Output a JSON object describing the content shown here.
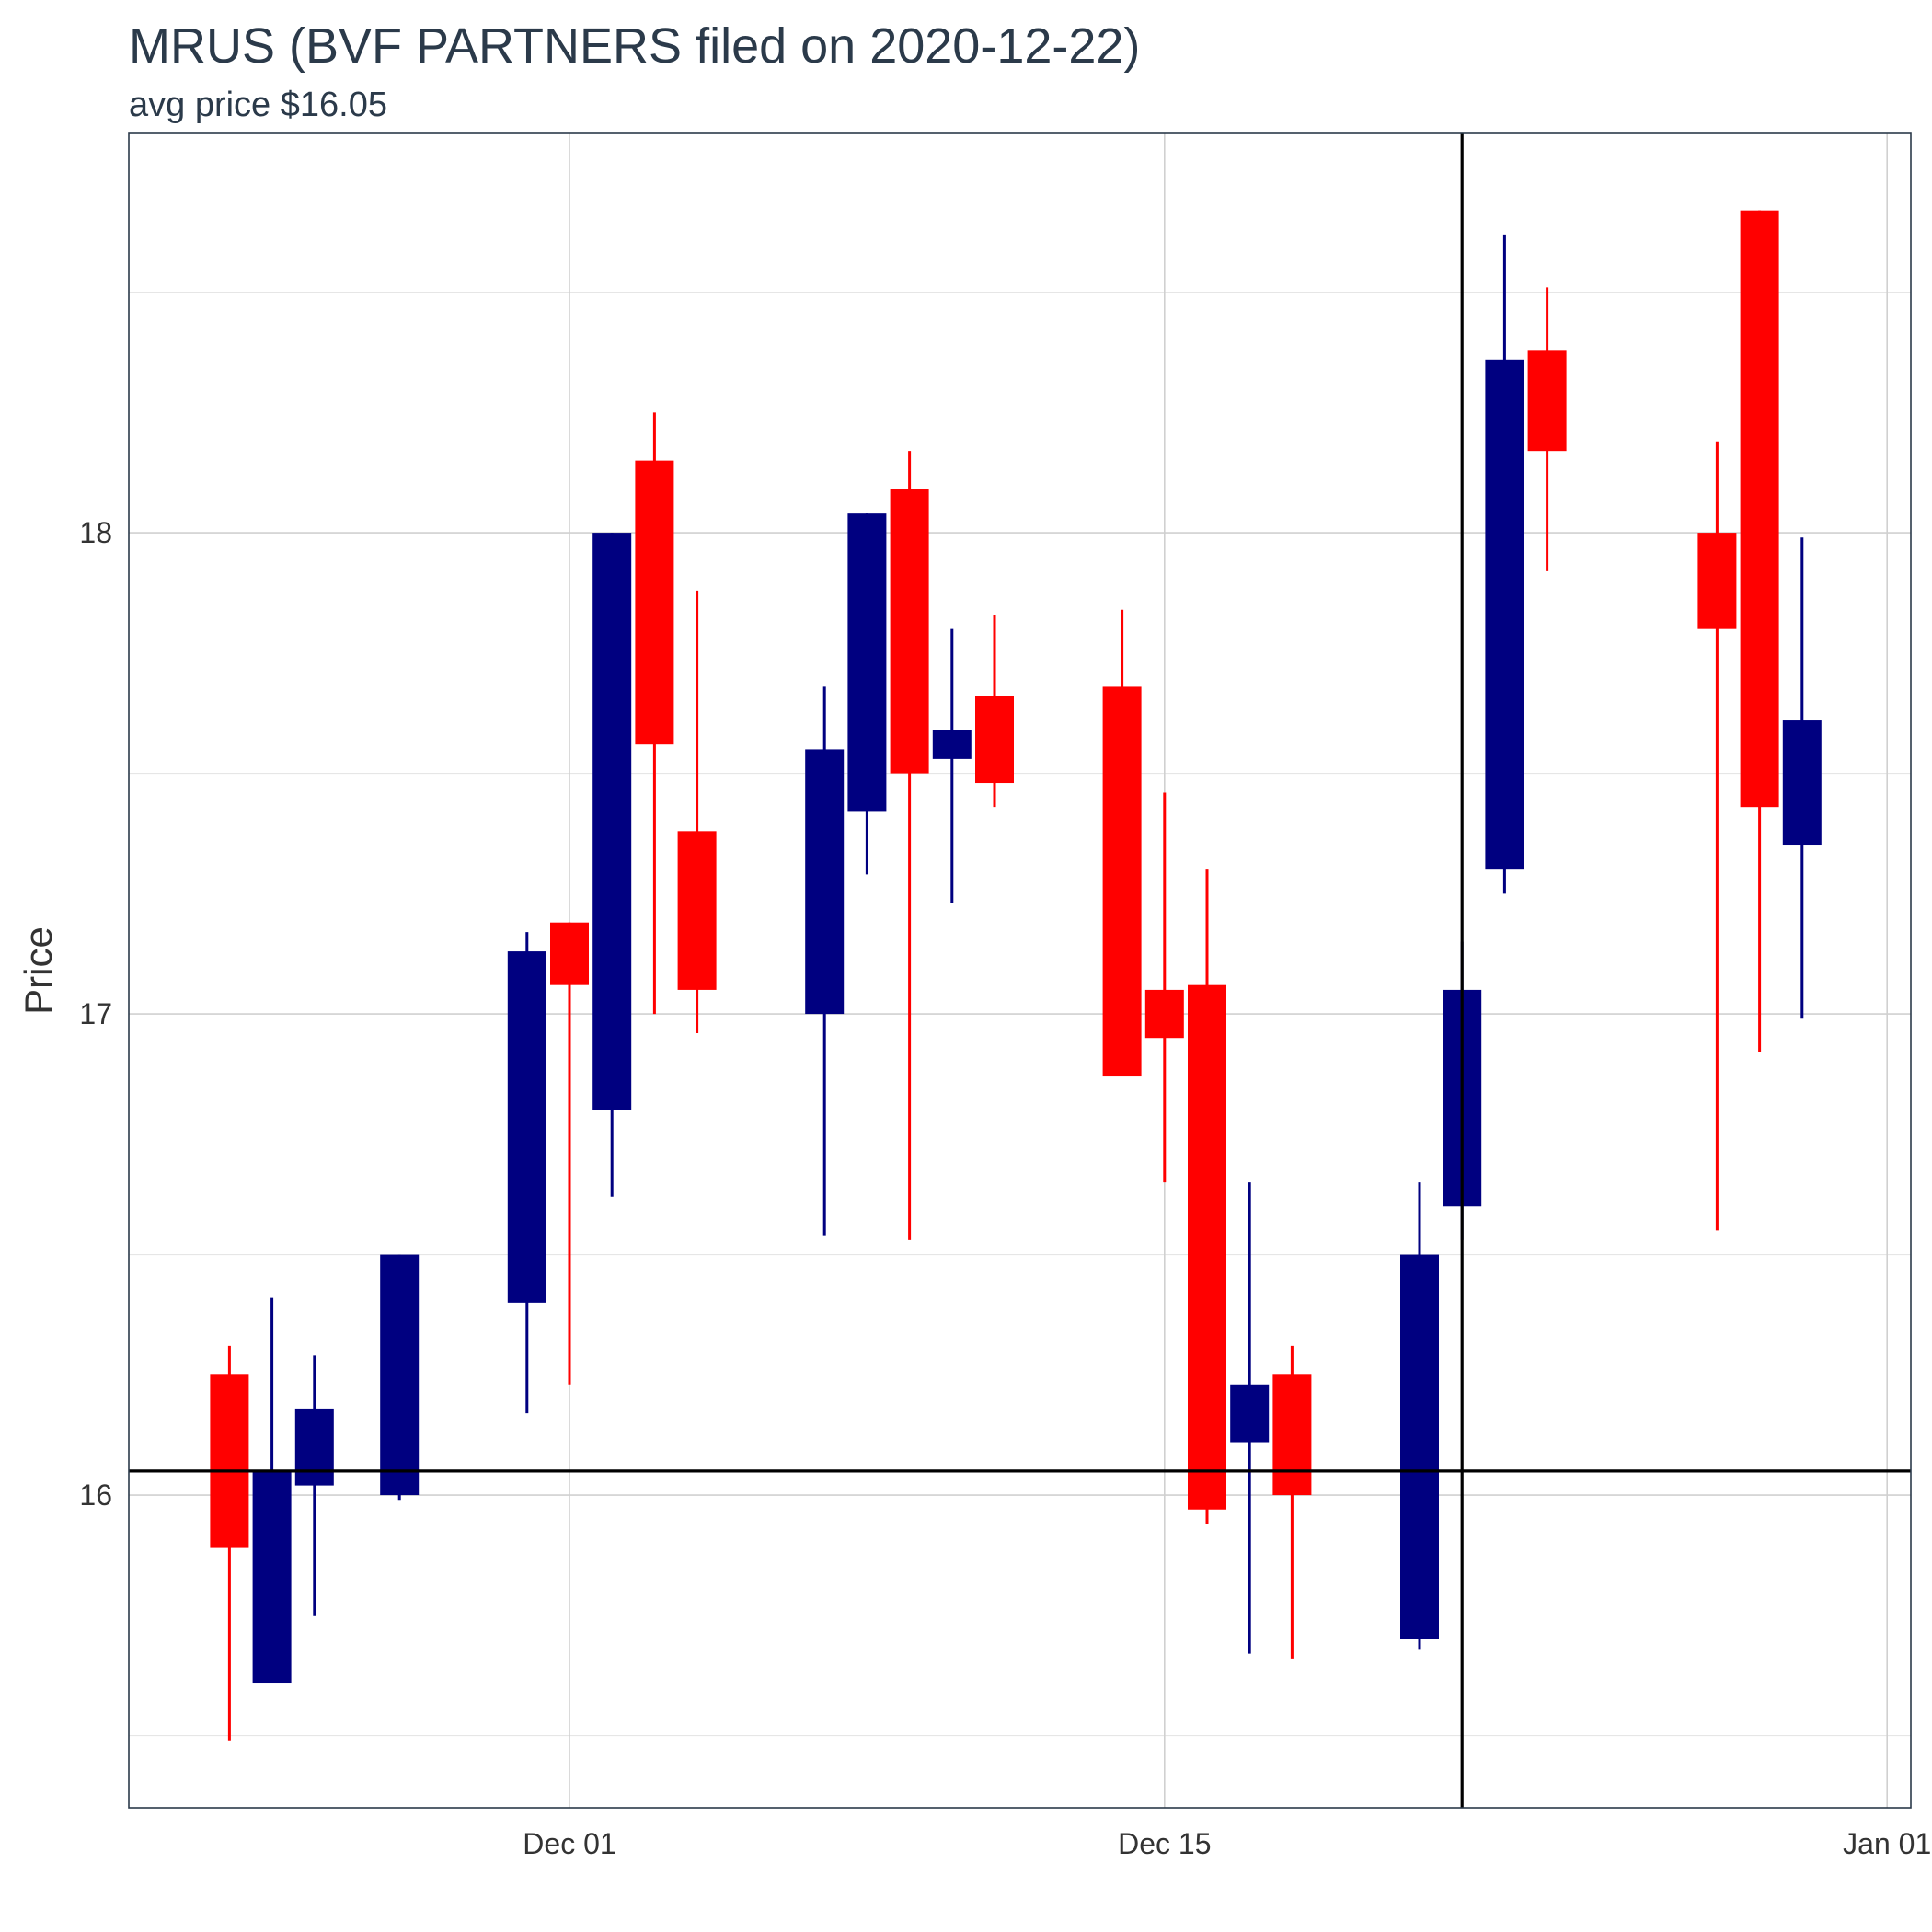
{
  "chart_data": {
    "type": "candlestick",
    "title": "MRUS (BVF PARTNERS filed on 2020-12-22)",
    "subtitle": "avg price $16.05",
    "ylabel": "Price",
    "xlabel": "",
    "ylim": [
      15.35,
      18.83
    ],
    "y_ticks": [
      16,
      17,
      18
    ],
    "x_ticks": [
      {
        "date": "2020-12-01",
        "label": "Dec 01"
      },
      {
        "date": "2020-12-15",
        "label": "Dec 15"
      },
      {
        "date": "2021-01-01",
        "label": "Jan 01"
      }
    ],
    "xlim": [
      "2020-10-21",
      "2021-01-01"
    ],
    "colors": {
      "up": "#000080",
      "down": "#ff0000",
      "reference": "#000000"
    },
    "reference_lines": {
      "avg_price": 16.05,
      "filing_date": "2020-12-22"
    },
    "grid": true,
    "legend": "none",
    "candles": [
      {
        "date": "2020-11-23",
        "open": 16.25,
        "high": 16.31,
        "low": 15.49,
        "close": 15.89
      },
      {
        "date": "2020-11-24",
        "open": 15.61,
        "high": 16.41,
        "low": 15.61,
        "close": 16.05
      },
      {
        "date": "2020-11-25",
        "open": 16.02,
        "high": 16.29,
        "low": 15.75,
        "close": 16.18
      },
      {
        "date": "2020-11-27",
        "open": 16.0,
        "high": 16.5,
        "low": 15.99,
        "close": 16.5
      },
      {
        "date": "2020-11-30",
        "open": 16.4,
        "high": 17.17,
        "low": 16.17,
        "close": 17.13
      },
      {
        "date": "2020-12-01",
        "open": 17.19,
        "high": 17.19,
        "low": 16.23,
        "close": 17.06
      },
      {
        "date": "2020-12-02",
        "open": 16.8,
        "high": 18.0,
        "low": 16.62,
        "close": 18.0
      },
      {
        "date": "2020-12-03",
        "open": 18.15,
        "high": 18.25,
        "low": 17.0,
        "close": 17.56
      },
      {
        "date": "2020-12-04",
        "open": 17.38,
        "high": 17.88,
        "low": 16.96,
        "close": 17.05
      },
      {
        "date": "2020-12-07",
        "open": 17.0,
        "high": 17.68,
        "low": 16.54,
        "close": 17.55
      },
      {
        "date": "2020-12-08",
        "open": 17.42,
        "high": 18.04,
        "low": 17.29,
        "close": 18.04
      },
      {
        "date": "2020-12-09",
        "open": 18.09,
        "high": 18.17,
        "low": 16.53,
        "close": 17.5
      },
      {
        "date": "2020-12-10",
        "open": 17.53,
        "high": 17.8,
        "low": 17.23,
        "close": 17.59
      },
      {
        "date": "2020-12-11",
        "open": 17.66,
        "high": 17.83,
        "low": 17.43,
        "close": 17.48
      },
      {
        "date": "2020-12-14",
        "open": 17.68,
        "high": 17.84,
        "low": 16.87,
        "close": 16.87
      },
      {
        "date": "2020-12-15",
        "open": 17.05,
        "high": 17.46,
        "low": 16.65,
        "close": 16.95
      },
      {
        "date": "2020-12-16",
        "open": 17.06,
        "high": 17.3,
        "low": 15.94,
        "close": 15.97
      },
      {
        "date": "2020-12-17",
        "open": 16.11,
        "high": 16.65,
        "low": 15.67,
        "close": 16.23
      },
      {
        "date": "2020-12-18",
        "open": 16.25,
        "high": 16.31,
        "low": 15.66,
        "close": 16.0
      },
      {
        "date": "2020-12-21",
        "open": 15.7,
        "high": 16.65,
        "low": 15.68,
        "close": 16.5
      },
      {
        "date": "2020-12-22",
        "open": 16.6,
        "high": 17.15,
        "low": 16.53,
        "close": 17.05
      },
      {
        "date": "2020-12-23",
        "open": 17.3,
        "high": 18.62,
        "low": 17.25,
        "close": 18.36
      },
      {
        "date": "2020-12-24",
        "open": 18.38,
        "high": 18.51,
        "low": 17.92,
        "close": 18.17
      },
      {
        "date": "2020-12-28",
        "open": 18.0,
        "high": 18.19,
        "low": 16.55,
        "close": 17.8
      },
      {
        "date": "2020-12-29",
        "open": 18.67,
        "high": 18.67,
        "low": 16.92,
        "close": 17.43
      },
      {
        "date": "2020-12-30",
        "open": 17.35,
        "high": 17.99,
        "low": 16.99,
        "close": 17.61
      }
    ]
  }
}
